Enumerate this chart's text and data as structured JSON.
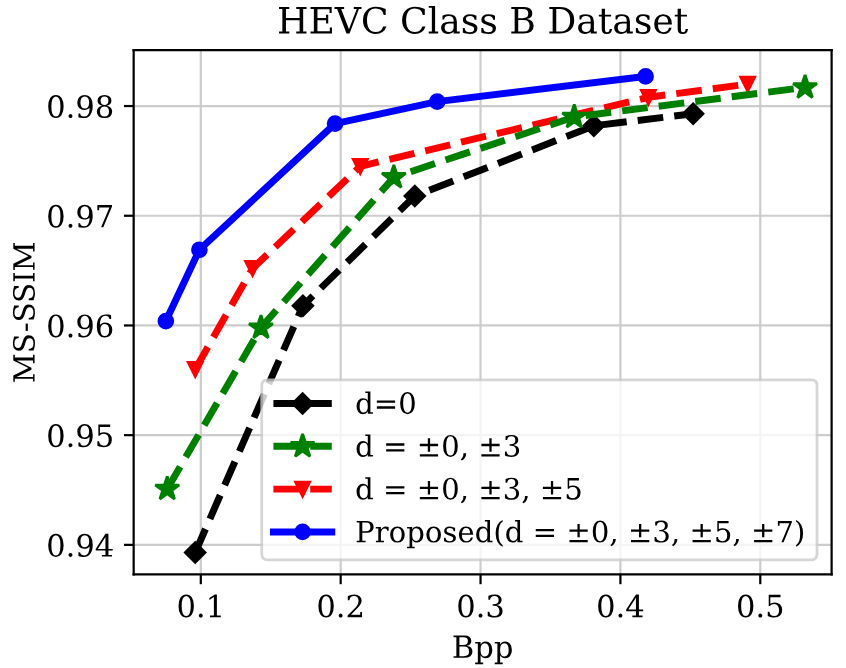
{
  "chart_data": {
    "type": "line",
    "title": "HEVC Class B Dataset",
    "xlabel": "Bpp",
    "ylabel": "MS-SSIM",
    "xlim": [
      0.052,
      0.551
    ],
    "ylim": [
      0.9373,
      0.9851
    ],
    "xticks": [
      0.1,
      0.2,
      0.3,
      0.4,
      0.5
    ],
    "yticks": [
      0.94,
      0.95,
      0.96,
      0.97,
      0.98
    ],
    "grid": true,
    "legend": "bottom right",
    "series": [
      {
        "name": "d=0",
        "color": "#000000",
        "marker": "diamond",
        "line_style": "dashed",
        "x": [
          0.096,
          0.173,
          0.253,
          0.381,
          0.452
        ],
        "values": [
          0.9393,
          0.9618,
          0.9718,
          0.9782,
          0.9793
        ]
      },
      {
        "name": "d = ±0, ±3",
        "color": "#008000",
        "marker": "star",
        "line_style": "dashed",
        "x": [
          0.076,
          0.143,
          0.238,
          0.367,
          0.532
        ],
        "values": [
          0.9451,
          0.9598,
          0.9735,
          0.979,
          0.9817
        ]
      },
      {
        "name": "d = ±0, ±3, ±5",
        "color": "#ff0000",
        "marker": "triangle",
        "line_style": "dashed",
        "x": [
          0.096,
          0.137,
          0.214,
          0.42,
          0.491
        ],
        "values": [
          0.956,
          0.9652,
          0.9745,
          0.9808,
          0.982
        ]
      },
      {
        "name": "Proposed(d = ±0, ±3, ±5, ±7)",
        "color": "#0000ff",
        "marker": "circle",
        "line_style": "solid",
        "x": [
          0.075,
          0.099,
          0.196,
          0.269,
          0.418
        ],
        "values": [
          0.9604,
          0.9669,
          0.9784,
          0.9804,
          0.9827
        ]
      }
    ]
  }
}
